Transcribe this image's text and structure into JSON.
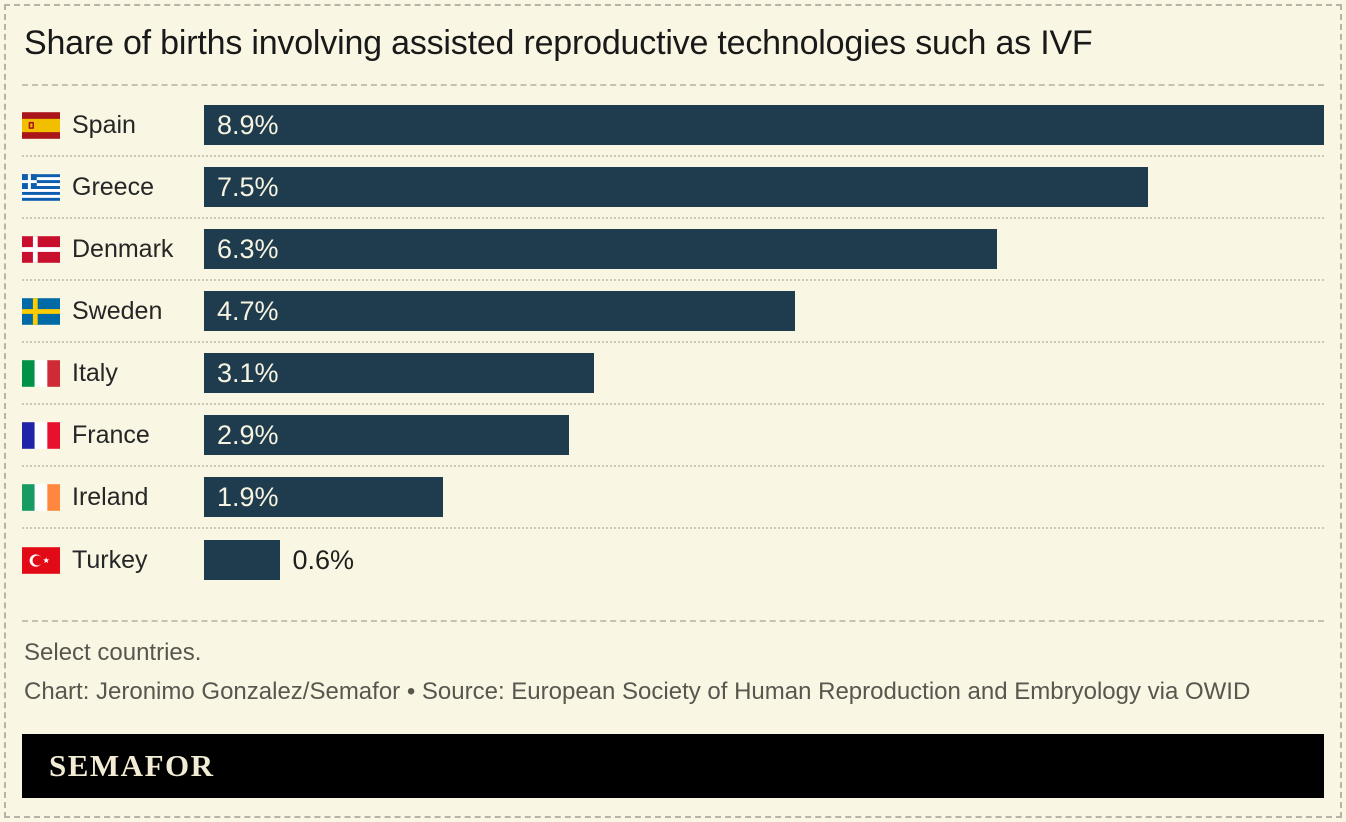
{
  "page": {
    "title": "Share of births involving assisted reproductive technologies such as IVF"
  },
  "chart_data": {
    "type": "bar",
    "orientation": "horizontal",
    "title": "Share of births involving assisted reproductive technologies such as IVF",
    "categories": [
      "Spain",
      "Greece",
      "Denmark",
      "Sweden",
      "Italy",
      "France",
      "Ireland",
      "Turkey"
    ],
    "values": [
      8.9,
      7.5,
      6.3,
      4.7,
      3.1,
      2.9,
      1.9,
      0.6
    ],
    "value_labels": [
      "8.9%",
      "7.5%",
      "6.3%",
      "4.7%",
      "3.1%",
      "2.9%",
      "1.9%",
      "0.6%"
    ],
    "xlim": [
      0,
      8.9
    ],
    "xlabel": "",
    "ylabel": "",
    "grid": false,
    "legend": "none",
    "bar_color": "#1e3c4d",
    "value_label_positions": [
      "inside",
      "inside",
      "inside",
      "inside",
      "inside",
      "inside",
      "inside",
      "outside"
    ]
  },
  "rows": [
    {
      "country": "Spain",
      "flag": "es",
      "flag_icon": "spain-flag-icon",
      "value": 8.9,
      "label": "8.9%",
      "label_position": "inside"
    },
    {
      "country": "Greece",
      "flag": "gr",
      "flag_icon": "greece-flag-icon",
      "value": 7.5,
      "label": "7.5%",
      "label_position": "inside"
    },
    {
      "country": "Denmark",
      "flag": "dk",
      "flag_icon": "denmark-flag-icon",
      "value": 6.3,
      "label": "6.3%",
      "label_position": "inside"
    },
    {
      "country": "Sweden",
      "flag": "se",
      "flag_icon": "sweden-flag-icon",
      "value": 4.7,
      "label": "4.7%",
      "label_position": "inside"
    },
    {
      "country": "Italy",
      "flag": "it",
      "flag_icon": "italy-flag-icon",
      "value": 3.1,
      "label": "3.1%",
      "label_position": "inside"
    },
    {
      "country": "France",
      "flag": "fr",
      "flag_icon": "france-flag-icon",
      "value": 2.9,
      "label": "2.9%",
      "label_position": "inside"
    },
    {
      "country": "Ireland",
      "flag": "ie",
      "flag_icon": "ireland-flag-icon",
      "value": 1.9,
      "label": "1.9%",
      "label_position": "inside"
    },
    {
      "country": "Turkey",
      "flag": "tr",
      "flag_icon": "turkey-flag-icon",
      "value": 0.6,
      "label": "0.6%",
      "label_position": "outside"
    }
  ],
  "footer": {
    "note": "Select countries.",
    "credit": "Chart: Jeronimo Gonzalez/Semafor • Source: European Society of Human Reproduction and Embryology via OWID",
    "logo_text": "SEMAFOR"
  },
  "colors": {
    "background": "#f9f6e3",
    "bar": "#1e3c4d",
    "bar_label": "#f7f3e1",
    "title_text": "#191919",
    "label_text": "#262626",
    "footer_text": "#57574f",
    "logo_bg": "#000000",
    "logo_text": "#f2ecd5",
    "dotted_separator": "#cbc8ba",
    "dashed_separator": "#c5c2b3"
  }
}
